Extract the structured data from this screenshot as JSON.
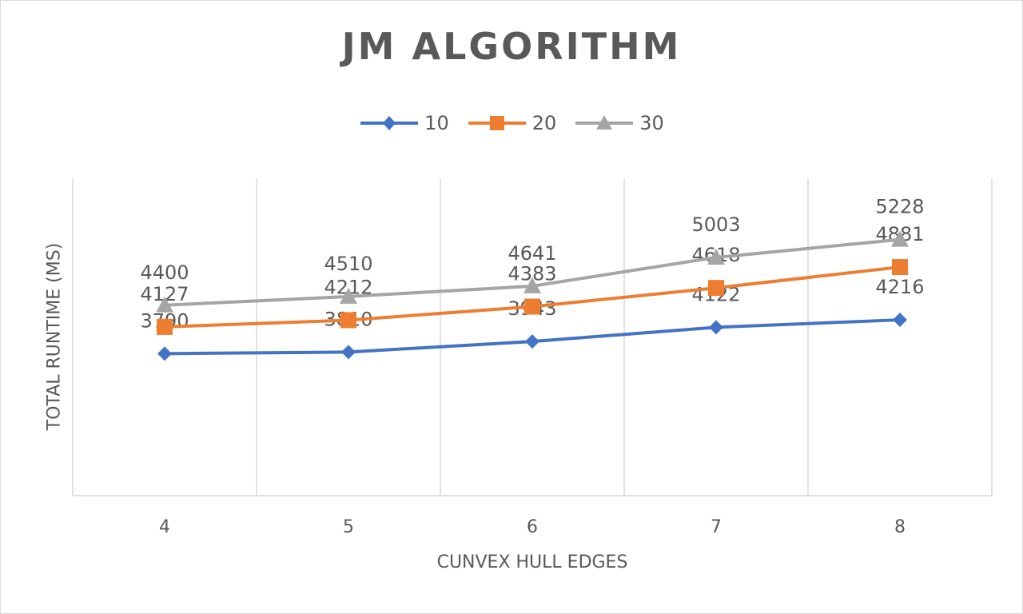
{
  "chart_data": {
    "type": "line",
    "title": "JM ALGORITHM",
    "xlabel": "CUNVEX HULL EDGES",
    "ylabel": "TOTAL RUNTIME (MS)",
    "categories": [
      "4",
      "5",
      "6",
      "7",
      "8"
    ],
    "ylim": [
      2000,
      6000
    ],
    "grid": "vertical",
    "legend": "top",
    "series": [
      {
        "name": "10",
        "values": [
          3790,
          3810,
          3943,
          4122,
          4216
        ],
        "color": "#4472c4",
        "marker": "diamond"
      },
      {
        "name": "20",
        "values": [
          4127,
          4212,
          4383,
          4618,
          4881
        ],
        "color": "#ed7d31",
        "marker": "square"
      },
      {
        "name": "30",
        "values": [
          4400,
          4510,
          4641,
          5003,
          5228
        ],
        "color": "#a5a5a5",
        "marker": "triangle"
      }
    ]
  }
}
